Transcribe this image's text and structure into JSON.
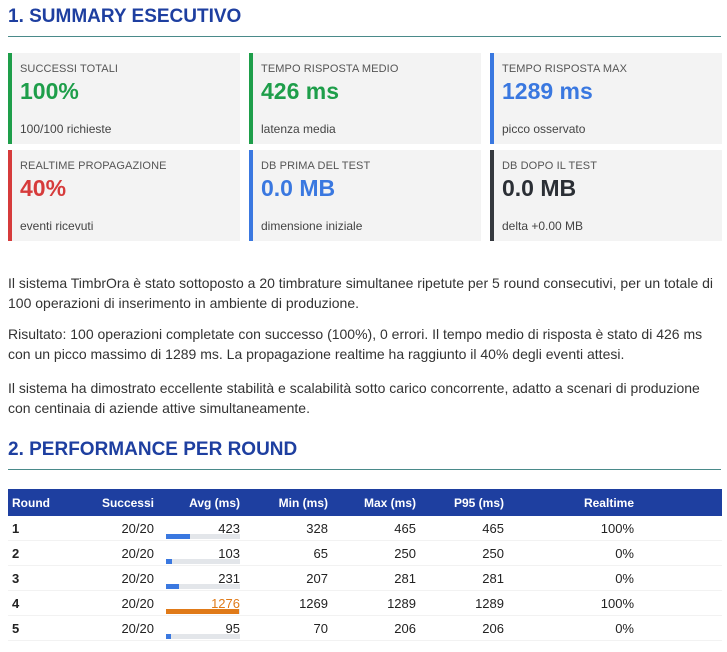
{
  "section1": {
    "title": "1. SUMMARY ESECUTIVO"
  },
  "cards": [
    {
      "label": "SUCCESSI TOTALI",
      "value": "100%",
      "sub": "100/100 richieste",
      "accent": "#1e9e4a",
      "value_color": "#1e9e4a"
    },
    {
      "label": "TEMPO RISPOSTA MEDIO",
      "value": "426 ms",
      "sub": "latenza media",
      "accent": "#1e9e4a",
      "value_color": "#1e9e4a"
    },
    {
      "label": "TEMPO RISPOSTA MAX",
      "value": "1289 ms",
      "sub": "picco osservato",
      "accent": "#3a78e0",
      "value_color": "#3a78e0"
    },
    {
      "label": "REALTIME PROPAGAZIONE",
      "value": "40%",
      "sub": "eventi ricevuti",
      "accent": "#d63b3b",
      "value_color": "#d63b3b"
    },
    {
      "label": "DB PRIMA DEL TEST",
      "value": "0.0 MB",
      "sub": "dimensione iniziale",
      "accent": "#3a78e0",
      "value_color": "#3a78e0"
    },
    {
      "label": "DB DOPO IL TEST",
      "value": "0.0 MB",
      "sub": "delta +0.00 MB",
      "accent": "#34383e",
      "value_color": "#2b2f35"
    }
  ],
  "paragraphs": [
    "Il sistema TimbrOra è stato sottoposto a 20 timbrature simultanee ripetute per 5 round consecutivi, per un totale di 100 operazioni di inserimento in ambiente di produzione.",
    "Risultato: 100 operazioni completate con successo (100%), 0 errori. Il tempo medio di risposta è stato di 426 ms con un picco massimo di 1289 ms. La propagazione realtime ha raggiunto il 40% degli eventi attesi.",
    "Il sistema ha dimostrato eccellente stabilità e scalabilità sotto carico concorrente, adatto a scenari di produzione con centinaia di aziende attive simultaneamente."
  ],
  "section2": {
    "title": "2. PERFORMANCE PER ROUND"
  },
  "table": {
    "headers": [
      "Round",
      "Successi",
      "Avg (ms)",
      "Min (ms)",
      "Max (ms)",
      "P95 (ms)",
      "Realtime"
    ],
    "rows": [
      {
        "round": "1",
        "successi": "20/20",
        "avg": "423",
        "min": "328",
        "max": "465",
        "p95": "465",
        "realtime": "100%"
      },
      {
        "round": "2",
        "successi": "20/20",
        "avg": "103",
        "min": "65",
        "max": "250",
        "p95": "250",
        "realtime": "0%"
      },
      {
        "round": "3",
        "successi": "20/20",
        "avg": "231",
        "min": "207",
        "max": "281",
        "p95": "281",
        "realtime": "0%"
      },
      {
        "round": "4",
        "successi": "20/20",
        "avg": "1276",
        "min": "1269",
        "max": "1289",
        "p95": "1289",
        "realtime": "100%"
      },
      {
        "round": "5",
        "successi": "20/20",
        "avg": "95",
        "min": "70",
        "max": "206",
        "p95": "206",
        "realtime": "0%"
      }
    ]
  },
  "colors": {
    "ok": "#1e9e4a",
    "bad": "#d63b3b",
    "bar": "#3a78e0",
    "bar_high": "#e07a18",
    "header": "#1e3fa0"
  },
  "chart_data": {
    "type": "bar",
    "categories": [
      "1",
      "2",
      "3",
      "4",
      "5"
    ],
    "values": [
      423,
      103,
      231,
      1276,
      95
    ],
    "xlabel": "Round",
    "ylabel": "Avg (ms)",
    "ylim": [
      0,
      1289
    ]
  }
}
